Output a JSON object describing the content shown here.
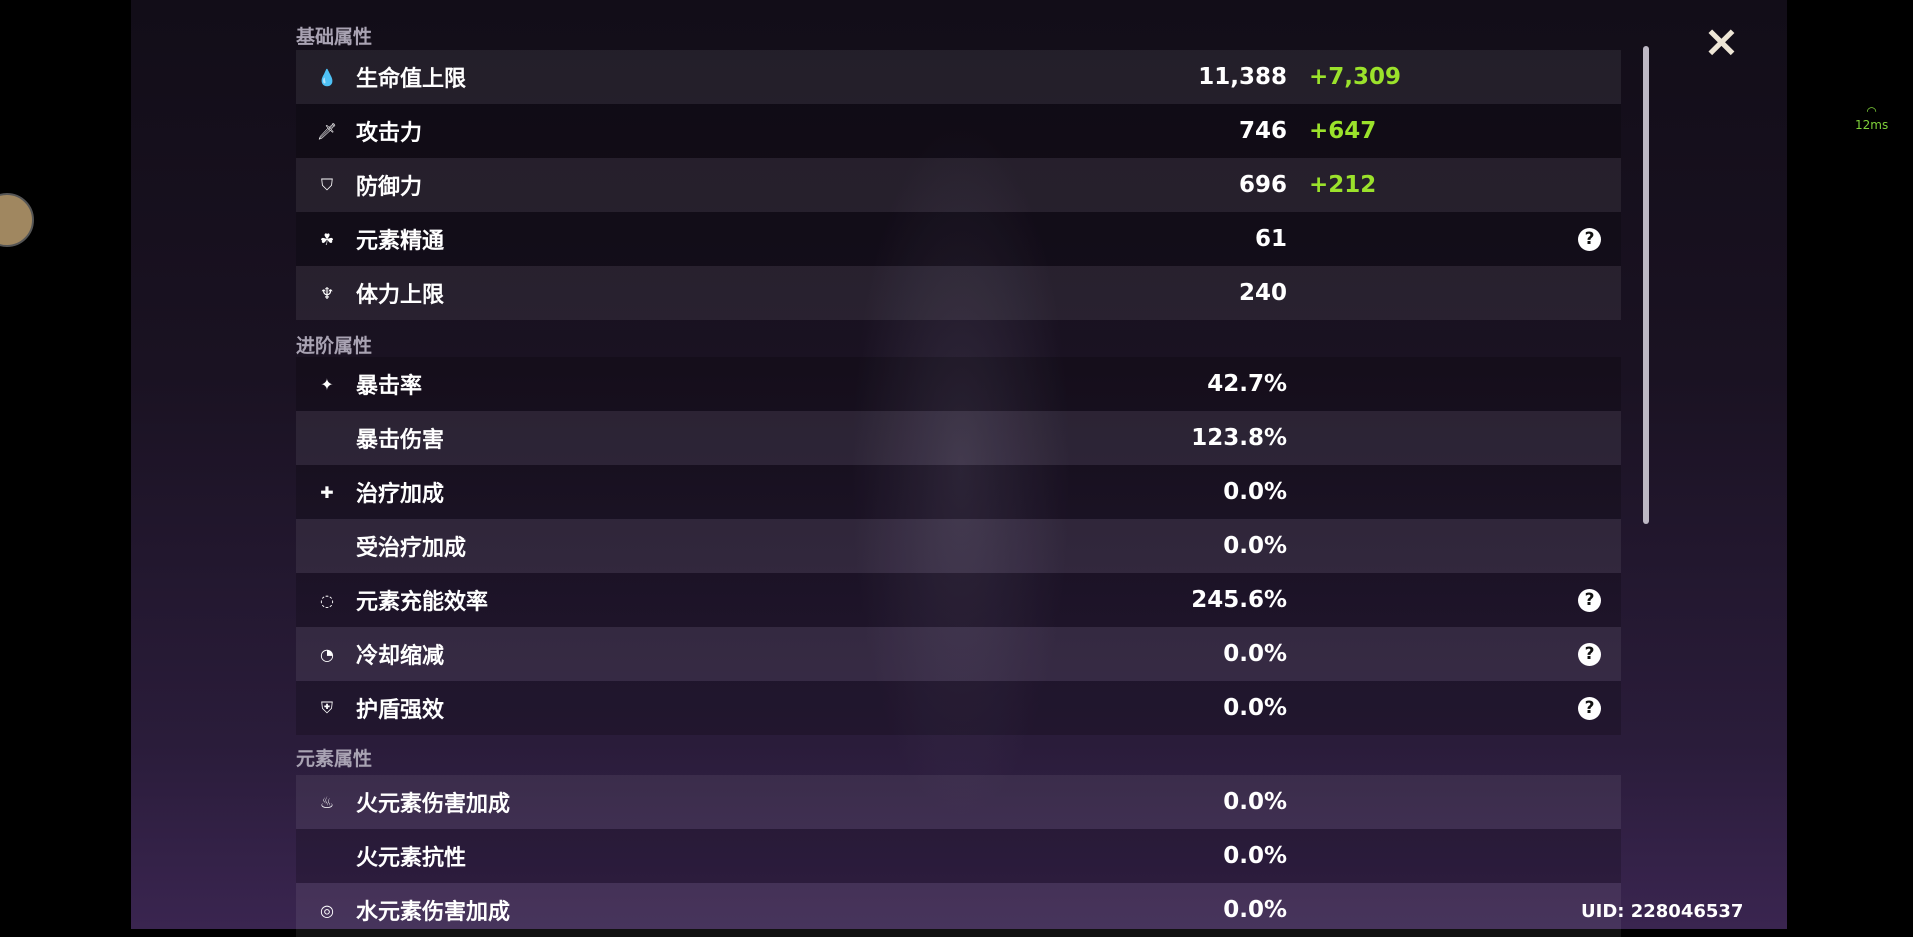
{
  "sections": [
    {
      "title": "基础属性",
      "rows": [
        {
          "icon": "hp-drop-icon",
          "label": "生命值上限",
          "value": "11,388",
          "bonus": "+7,309"
        },
        {
          "icon": "sword-icon",
          "label": "攻击力",
          "value": "746",
          "bonus": "+647"
        },
        {
          "icon": "shield-icon",
          "label": "防御力",
          "value": "696",
          "bonus": "+212"
        },
        {
          "icon": "elemental-mastery-icon",
          "label": "元素精通",
          "value": "61",
          "help": "?"
        },
        {
          "icon": "stamina-icon",
          "label": "体力上限",
          "value": "240"
        }
      ]
    },
    {
      "title": "进阶属性",
      "rows": [
        {
          "icon": "crit-star-icon",
          "label": "暴击率",
          "value": "42.7%"
        },
        {
          "icon": "",
          "label": "暴击伤害",
          "value": "123.8%"
        },
        {
          "icon": "healing-cross-icon",
          "label": "治疗加成",
          "value": "0.0%"
        },
        {
          "icon": "",
          "label": "受治疗加成",
          "value": "0.0%"
        },
        {
          "icon": "energy-recharge-icon",
          "label": "元素充能效率",
          "value": "245.6%",
          "help": "?"
        },
        {
          "icon": "cooldown-icon",
          "label": "冷却缩减",
          "value": "0.0%",
          "help": "?"
        },
        {
          "icon": "shield-strength-icon",
          "label": "护盾强效",
          "value": "0.0%",
          "help": "?"
        }
      ]
    },
    {
      "title": "元素属性",
      "rows": [
        {
          "icon": "pyro-icon",
          "label": "火元素伤害加成",
          "value": "0.0%"
        },
        {
          "icon": "",
          "label": "火元素抗性",
          "value": "0.0%"
        },
        {
          "icon": "hydro-icon",
          "label": "水元素伤害加成",
          "value": "0.0%"
        }
      ]
    }
  ],
  "close_icon": "×",
  "uid": "UID: 228046537",
  "ping": "12ms",
  "colors": {
    "bonus": "#9be22b",
    "ping": "#7fd13a"
  }
}
